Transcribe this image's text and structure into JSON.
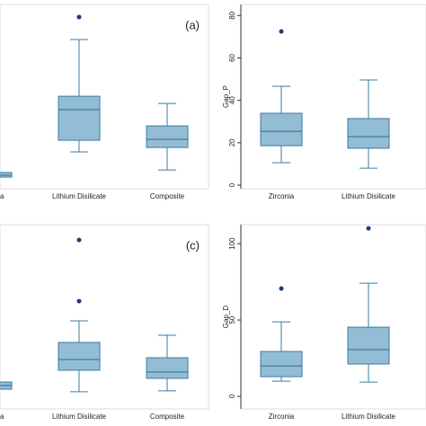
{
  "chart_data": [
    {
      "type": "box",
      "label": "(a)",
      "ylim": [
        0,
        100
      ],
      "categories": [
        "a",
        "Lithium Disilicate",
        "Composite"
      ],
      "boxes": [
        {
          "low": 4.9,
          "q1": 6.3,
          "median": 7.3,
          "q3": 8.8,
          "high": 11.2,
          "outliers": []
        },
        {
          "low": 20,
          "q1": 26.3,
          "median": 42.9,
          "q3": 50.2,
          "high": 81,
          "outliers": [
            93.2
          ]
        },
        {
          "low": 10.2,
          "q1": 22.4,
          "median": 26.8,
          "q3": 34.1,
          "high": 46.3,
          "outliers": []
        }
      ]
    },
    {
      "type": "box",
      "y_label": "Gap_P",
      "ylim": [
        -1.7,
        85.2
      ],
      "yticks": [
        0,
        20,
        40,
        60,
        80
      ],
      "categories": [
        "Zirconia",
        "Lithium Disilicate"
      ],
      "boxes": [
        {
          "low": 10.6,
          "q1": 18.6,
          "median": 25.4,
          "q3": 33.9,
          "high": 46.6,
          "outliers": [
            72.5
          ]
        },
        {
          "low": 8,
          "q1": 17.4,
          "median": 22.9,
          "q3": 31.4,
          "high": 49.6,
          "outliers": []
        }
      ]
    },
    {
      "type": "box",
      "label": "(c)",
      "ylim": [
        0,
        100
      ],
      "categories": [
        "a",
        "Lithium Disilicate",
        "Composite"
      ],
      "boxes": [
        {
          "low": 8.3,
          "q1": 10.7,
          "median": 12.7,
          "q3": 14.6,
          "high": 18,
          "outliers": []
        },
        {
          "low": 9.3,
          "q1": 21,
          "median": 26.8,
          "q3": 36.1,
          "high": 47.8,
          "outliers": [
            58.5,
            91.7
          ]
        },
        {
          "low": 9.8,
          "q1": 16.6,
          "median": 20,
          "q3": 27.8,
          "high": 40,
          "outliers": []
        }
      ]
    },
    {
      "type": "box",
      "y_label": "Gap_D",
      "ylim": [
        -8.2,
        112.4
      ],
      "yticks": [
        0,
        50,
        100
      ],
      "categories": [
        "Zirconia",
        "Lithium Disilicate"
      ],
      "boxes": [
        {
          "low": 10,
          "q1": 12.9,
          "median": 20,
          "q3": 29.4,
          "high": 48.8,
          "outliers": [
            70.6
          ]
        },
        {
          "low": 9.4,
          "q1": 21.2,
          "median": 30.6,
          "q3": 45.3,
          "high": 74.1,
          "outliers": [
            110
          ]
        }
      ]
    }
  ]
}
